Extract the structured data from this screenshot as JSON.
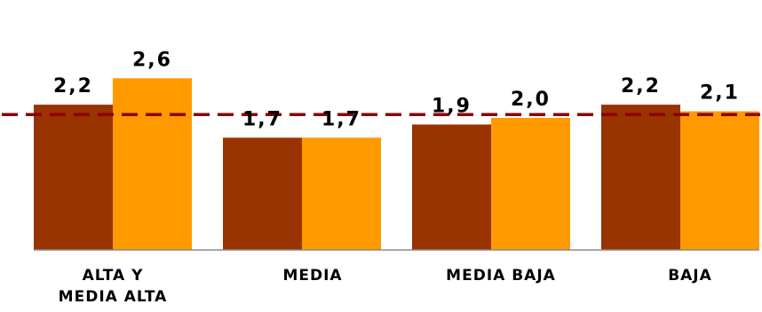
{
  "chart_data": {
    "type": "bar",
    "categories": [
      "ALTA Y\nMEDIA ALTA",
      "MEDIA",
      "MEDIA BAJA",
      "BAJA"
    ],
    "series": [
      {
        "values": [
          2.2,
          1.7,
          1.9,
          2.2
        ],
        "color": "#993300"
      },
      {
        "values": [
          2.6,
          1.7,
          2.0,
          2.1
        ],
        "color": "#FF9900"
      }
    ],
    "data_labels": [
      [
        "2,2",
        "1,7",
        "1,9",
        "2,2"
      ],
      [
        "2,6",
        "1,7",
        "2,0",
        "2,1"
      ]
    ],
    "reference_line": {
      "value": 2.05,
      "style": "dashed",
      "color": "#8B0000"
    },
    "ylim": [
      0,
      3.0
    ],
    "grid": false,
    "legend": "none"
  }
}
